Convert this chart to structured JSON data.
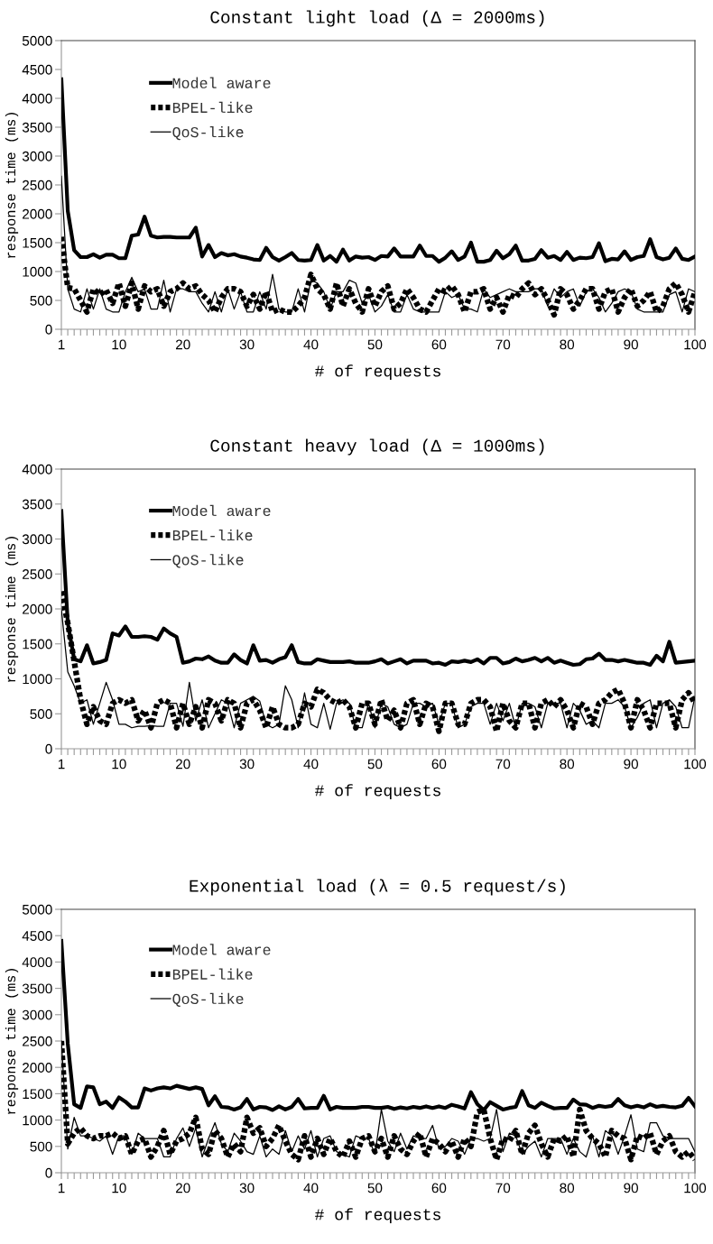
{
  "chart_data": [
    {
      "type": "line",
      "title": "Constant light load (Δ = 2000ms)",
      "xlabel": "# of requests",
      "ylabel": "response time (ms)",
      "categories": [
        "1",
        null,
        null,
        null,
        null,
        null,
        null,
        null,
        null,
        "10",
        null,
        null,
        null,
        null,
        null,
        null,
        null,
        null,
        null,
        "20",
        null,
        null,
        null,
        null,
        null,
        null,
        null,
        null,
        null,
        "30",
        null,
        null,
        null,
        null,
        null,
        null,
        null,
        null,
        null,
        "40",
        null,
        null,
        null,
        null,
        null,
        null,
        null,
        null,
        null,
        "50",
        null,
        null,
        null,
        null,
        null,
        null,
        null,
        null,
        null,
        "60",
        null,
        null,
        null,
        null,
        null,
        null,
        null,
        null,
        null,
        "70",
        null,
        null,
        null,
        null,
        null,
        null,
        null,
        null,
        null,
        "80",
        null,
        null,
        null,
        null,
        null,
        null,
        null,
        null,
        null,
        "90",
        null,
        null,
        null,
        null,
        null,
        null,
        null,
        null,
        null,
        "100"
      ],
      "ylim": [
        0,
        5000
      ],
      "yticks": [
        0,
        500,
        1000,
        1500,
        2000,
        2500,
        3000,
        3500,
        4000,
        4500,
        5000
      ],
      "grid": false,
      "legend": "top left",
      "series": [
        {
          "name": "Model aware",
          "color": "#000000",
          "line_style": "solid",
          "values": [
            4330,
            2050,
            1370,
            1250,
            1250,
            1300,
            1240,
            1290,
            1290,
            1230,
            1230,
            1620,
            1640,
            1950,
            1620,
            1590,
            1600,
            1600,
            1590,
            1590,
            1590,
            1760,
            1260,
            1460,
            1250,
            1320,
            1280,
            1300,
            1260,
            1240,
            1210,
            1200,
            1410,
            1250,
            1190,
            1250,
            1320,
            1200,
            1190,
            1200,
            1460,
            1190,
            1270,
            1170,
            1380,
            1190,
            1260,
            1240,
            1250,
            1200,
            1270,
            1260,
            1400,
            1260,
            1260,
            1260,
            1450,
            1270,
            1270,
            1170,
            1240,
            1350,
            1200,
            1260,
            1500,
            1170,
            1170,
            1200,
            1360,
            1230,
            1300,
            1450,
            1190,
            1190,
            1220,
            1370,
            1240,
            1270,
            1200,
            1340,
            1200,
            1240,
            1230,
            1250,
            1490,
            1180,
            1220,
            1210,
            1350,
            1200,
            1250,
            1270,
            1560,
            1250,
            1210,
            1240,
            1400,
            1220,
            1200,
            1260
          ]
        },
        {
          "name": "BPEL-like",
          "color": "#000000",
          "line_style": "dotted",
          "values": [
            1600,
            720,
            700,
            500,
            300,
            700,
            600,
            680,
            450,
            800,
            400,
            800,
            350,
            750,
            650,
            700,
            400,
            650,
            700,
            800,
            700,
            750,
            600,
            500,
            300,
            550,
            700,
            700,
            650,
            400,
            600,
            350,
            650,
            300,
            350,
            300,
            300,
            400,
            550,
            950,
            700,
            600,
            350,
            800,
            400,
            700,
            450,
            300,
            700,
            400,
            650,
            750,
            350,
            450,
            700,
            550,
            350,
            300,
            500,
            700,
            650,
            750,
            600,
            300,
            650,
            650,
            700,
            350,
            550,
            300,
            600,
            550,
            700,
            800,
            600,
            700,
            500,
            250,
            700,
            600,
            350,
            500,
            700,
            700,
            350,
            650,
            700,
            300,
            550,
            700,
            400,
            500,
            650,
            300,
            400,
            700,
            800,
            600,
            300,
            650
          ]
        },
        {
          "name": "QoS-like",
          "color": "#000000",
          "line_style": "solid",
          "values": [
            2650,
            700,
            350,
            300,
            700,
            350,
            700,
            350,
            300,
            300,
            650,
            900,
            650,
            700,
            350,
            350,
            850,
            300,
            700,
            700,
            650,
            650,
            450,
            300,
            650,
            300,
            700,
            350,
            650,
            300,
            300,
            650,
            350,
            950,
            350,
            300,
            300,
            700,
            300,
            850,
            800,
            650,
            350,
            650,
            650,
            850,
            800,
            450,
            600,
            300,
            400,
            600,
            300,
            300,
            600,
            350,
            300,
            300,
            300,
            300,
            650,
            550,
            600,
            350,
            350,
            300,
            700,
            550,
            600,
            650,
            700,
            650,
            650,
            650,
            700,
            700,
            400,
            700,
            550,
            650,
            700,
            400,
            650,
            700,
            550,
            300,
            450,
            650,
            700,
            650,
            350,
            300,
            300,
            300,
            300,
            600,
            650,
            300,
            700,
            650
          ]
        }
      ]
    },
    {
      "type": "line",
      "title": "Constant heavy load (Δ = 1000ms)",
      "xlabel": "# of requests",
      "ylabel": "response time (ms)",
      "categories": [
        "1",
        null,
        null,
        null,
        null,
        null,
        null,
        null,
        null,
        "10",
        null,
        null,
        null,
        null,
        null,
        null,
        null,
        null,
        null,
        "20",
        null,
        null,
        null,
        null,
        null,
        null,
        null,
        null,
        null,
        "30",
        null,
        null,
        null,
        null,
        null,
        null,
        null,
        null,
        null,
        "40",
        null,
        null,
        null,
        null,
        null,
        null,
        null,
        null,
        null,
        "50",
        null,
        null,
        null,
        null,
        null,
        null,
        null,
        null,
        null,
        "60",
        null,
        null,
        null,
        null,
        null,
        null,
        null,
        null,
        null,
        "70",
        null,
        null,
        null,
        null,
        null,
        null,
        null,
        null,
        null,
        "80",
        null,
        null,
        null,
        null,
        null,
        null,
        null,
        null,
        null,
        "90",
        null,
        null,
        null,
        null,
        null,
        null,
        null,
        null,
        null,
        "100"
      ],
      "ylim": [
        0,
        4000
      ],
      "yticks": [
        0,
        500,
        1000,
        1500,
        2000,
        2500,
        3000,
        3500,
        4000
      ],
      "grid": false,
      "legend": "top left",
      "series": [
        {
          "name": "Model aware",
          "color": "#000000",
          "line_style": "solid",
          "values": [
            3400,
            1800,
            1280,
            1250,
            1480,
            1220,
            1240,
            1270,
            1650,
            1620,
            1750,
            1600,
            1600,
            1610,
            1600,
            1560,
            1720,
            1650,
            1600,
            1230,
            1250,
            1290,
            1280,
            1320,
            1260,
            1230,
            1230,
            1350,
            1270,
            1220,
            1480,
            1260,
            1270,
            1230,
            1280,
            1310,
            1480,
            1240,
            1220,
            1220,
            1280,
            1260,
            1240,
            1240,
            1240,
            1250,
            1230,
            1230,
            1230,
            1250,
            1280,
            1220,
            1250,
            1280,
            1220,
            1260,
            1260,
            1260,
            1220,
            1230,
            1200,
            1250,
            1240,
            1260,
            1240,
            1280,
            1220,
            1300,
            1300,
            1220,
            1240,
            1290,
            1250,
            1270,
            1300,
            1250,
            1300,
            1230,
            1260,
            1230,
            1200,
            1210,
            1280,
            1290,
            1360,
            1270,
            1270,
            1250,
            1270,
            1250,
            1230,
            1230,
            1200,
            1330,
            1250,
            1530,
            1230,
            1240,
            1250,
            1260
          ]
        },
        {
          "name": "BPEL-like",
          "color": "#000000",
          "line_style": "dotted",
          "values": [
            2250,
            1800,
            1250,
            700,
            350,
            600,
            400,
            350,
            650,
            700,
            650,
            700,
            400,
            550,
            300,
            650,
            700,
            650,
            300,
            650,
            350,
            600,
            300,
            700,
            650,
            400,
            700,
            650,
            300,
            650,
            700,
            550,
            300,
            600,
            350,
            300,
            300,
            350,
            650,
            600,
            850,
            800,
            700,
            650,
            700,
            600,
            300,
            650,
            650,
            350,
            700,
            400,
            550,
            300,
            650,
            700,
            350,
            650,
            600,
            250,
            650,
            650,
            350,
            350,
            650,
            700,
            700,
            600,
            250,
            650,
            400,
            300,
            650,
            650,
            300,
            650,
            700,
            600,
            700,
            550,
            300,
            650,
            600,
            350,
            650,
            700,
            800,
            850,
            650,
            300,
            700,
            550,
            300,
            650,
            650,
            650,
            300,
            700,
            800,
            650
          ]
        },
        {
          "name": "QoS-like",
          "color": "#000000",
          "line_style": "solid",
          "values": [
            2000,
            1100,
            900,
            650,
            700,
            350,
            650,
            950,
            700,
            350,
            350,
            300,
            320,
            320,
            330,
            320,
            320,
            650,
            650,
            320,
            950,
            400,
            700,
            300,
            500,
            700,
            650,
            300,
            650,
            700,
            750,
            680,
            350,
            300,
            350,
            900,
            700,
            300,
            800,
            350,
            300,
            650,
            280,
            650,
            700,
            650,
            300,
            300,
            650,
            300,
            650,
            600,
            350,
            300,
            350,
            650,
            650,
            600,
            650,
            350,
            650,
            650,
            300,
            350,
            600,
            650,
            650,
            350,
            650,
            400,
            650,
            300,
            650,
            650,
            600,
            300,
            650,
            650,
            650,
            300,
            650,
            550,
            350,
            400,
            300,
            650,
            650,
            700,
            600,
            300,
            450,
            650,
            700,
            300,
            650,
            700,
            600,
            300,
            300,
            750
          ]
        }
      ]
    },
    {
      "type": "line",
      "title": "Exponential load (λ = 0.5 request/s)",
      "xlabel": "# of requests",
      "ylabel": "response time (ms)",
      "categories": [
        "1",
        null,
        null,
        null,
        null,
        null,
        null,
        null,
        null,
        "10",
        null,
        null,
        null,
        null,
        null,
        null,
        null,
        null,
        null,
        "20",
        null,
        null,
        null,
        null,
        null,
        null,
        null,
        null,
        null,
        "30",
        null,
        null,
        null,
        null,
        null,
        null,
        null,
        null,
        null,
        "40",
        null,
        null,
        null,
        null,
        null,
        null,
        null,
        null,
        null,
        "50",
        null,
        null,
        null,
        null,
        null,
        null,
        null,
        null,
        null,
        "60",
        null,
        null,
        null,
        null,
        null,
        null,
        null,
        null,
        null,
        "70",
        null,
        null,
        null,
        null,
        null,
        null,
        null,
        null,
        null,
        "80",
        null,
        null,
        null,
        null,
        null,
        null,
        null,
        null,
        null,
        "90",
        null,
        null,
        null,
        null,
        null,
        null,
        null,
        null,
        null,
        "100"
      ],
      "ylim": [
        0,
        5000
      ],
      "yticks": [
        0,
        500,
        1000,
        1500,
        2000,
        2500,
        3000,
        3500,
        4000,
        4500,
        5000
      ],
      "grid": false,
      "legend": "top left",
      "series": [
        {
          "name": "Model aware",
          "color": "#000000",
          "line_style": "solid",
          "values": [
            4400,
            2450,
            1300,
            1230,
            1640,
            1620,
            1300,
            1350,
            1230,
            1430,
            1350,
            1240,
            1240,
            1600,
            1560,
            1600,
            1620,
            1600,
            1650,
            1620,
            1590,
            1620,
            1590,
            1280,
            1450,
            1250,
            1240,
            1200,
            1240,
            1400,
            1200,
            1250,
            1240,
            1190,
            1260,
            1200,
            1250,
            1400,
            1220,
            1230,
            1230,
            1460,
            1200,
            1250,
            1230,
            1230,
            1230,
            1250,
            1250,
            1230,
            1230,
            1250,
            1210,
            1240,
            1220,
            1250,
            1230,
            1260,
            1230,
            1260,
            1230,
            1290,
            1260,
            1220,
            1530,
            1300,
            1190,
            1340,
            1270,
            1200,
            1230,
            1250,
            1550,
            1280,
            1230,
            1330,
            1270,
            1220,
            1230,
            1230,
            1390,
            1300,
            1290,
            1230,
            1270,
            1250,
            1270,
            1400,
            1280,
            1240,
            1270,
            1240,
            1300,
            1250,
            1270,
            1250,
            1240,
            1270,
            1420,
            1260
          ]
        },
        {
          "name": "BPEL-like",
          "color": "#000000",
          "line_style": "dotted",
          "values": [
            2500,
            550,
            750,
            850,
            700,
            650,
            700,
            700,
            750,
            650,
            700,
            350,
            600,
            650,
            300,
            500,
            800,
            350,
            600,
            650,
            750,
            1050,
            450,
            350,
            800,
            650,
            300,
            550,
            400,
            1050,
            750,
            850,
            500,
            650,
            900,
            600,
            350,
            250,
            700,
            300,
            650,
            350,
            650,
            400,
            300,
            600,
            300,
            650,
            700,
            400,
            650,
            300,
            700,
            450,
            350,
            600,
            750,
            300,
            650,
            550,
            400,
            600,
            300,
            650,
            500,
            1150,
            1200,
            650,
            250,
            650,
            600,
            800,
            350,
            750,
            900,
            550,
            300,
            650,
            600,
            700,
            300,
            1200,
            800,
            650,
            550,
            300,
            800,
            700,
            650,
            250,
            700,
            650,
            750,
            350,
            600,
            700,
            400,
            300,
            400,
            250
          ]
        },
        {
          "name": "QoS-like",
          "color": "#000000",
          "line_style": "solid",
          "values": [
            2500,
            450,
            1050,
            700,
            700,
            650,
            600,
            700,
            350,
            700,
            700,
            350,
            750,
            650,
            650,
            650,
            300,
            300,
            650,
            850,
            500,
            850,
            300,
            650,
            950,
            550,
            400,
            750,
            600,
            400,
            350,
            700,
            300,
            450,
            350,
            800,
            400,
            700,
            450,
            800,
            300,
            650,
            700,
            400,
            350,
            300,
            700,
            650,
            650,
            350,
            1200,
            600,
            400,
            750,
            450,
            700,
            650,
            650,
            900,
            450,
            500,
            650,
            600,
            350,
            650,
            650,
            600,
            650,
            1200,
            400,
            750,
            700,
            350,
            500,
            600,
            300,
            650,
            650,
            650,
            350,
            650,
            400,
            300,
            700,
            300,
            800,
            700,
            350,
            700,
            1100,
            450,
            400,
            950,
            950,
            700,
            650,
            650,
            650,
            650,
            400
          ]
        }
      ]
    }
  ]
}
